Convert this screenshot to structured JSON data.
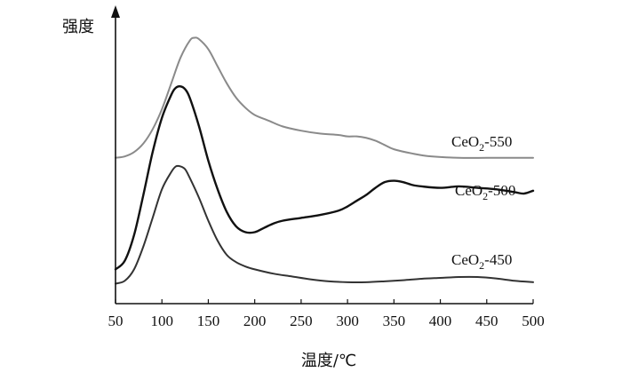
{
  "chart_data": {
    "type": "line",
    "xlabel": "温度/℃",
    "ylabel": "强度",
    "xlim": [
      50,
      500
    ],
    "ylim": [
      0,
      1
    ],
    "x_ticks": [
      50,
      100,
      150,
      200,
      250,
      300,
      350,
      400,
      450,
      500
    ],
    "y_ticks_shown": false,
    "grid": false,
    "legend": "inline-right",
    "series": [
      {
        "name": "CeO2-550",
        "label": {
          "base": "CeO",
          "sub": "2",
          "suffix": "-550"
        },
        "color": "#8a8a8a",
        "x": [
          50,
          60,
          70,
          80,
          90,
          100,
          110,
          120,
          130,
          135,
          140,
          150,
          160,
          170,
          180,
          190,
          200,
          215,
          230,
          250,
          270,
          290,
          300,
          310,
          320,
          330,
          340,
          350,
          370,
          390,
          420,
          450,
          470,
          500
        ],
        "y": [
          0.51,
          0.515,
          0.53,
          0.56,
          0.61,
          0.68,
          0.77,
          0.86,
          0.92,
          0.93,
          0.925,
          0.89,
          0.83,
          0.77,
          0.72,
          0.685,
          0.66,
          0.64,
          0.62,
          0.605,
          0.595,
          0.59,
          0.585,
          0.585,
          0.58,
          0.57,
          0.555,
          0.54,
          0.525,
          0.515,
          0.51,
          0.51,
          0.51,
          0.51
        ]
      },
      {
        "name": "CeO2-500",
        "label": {
          "base": "CeO",
          "sub": "2",
          "suffix": "-500"
        },
        "color": "#111111",
        "x": [
          50,
          60,
          70,
          80,
          90,
          100,
          110,
          115,
          120,
          125,
          130,
          140,
          150,
          160,
          170,
          180,
          190,
          200,
          210,
          220,
          230,
          250,
          270,
          290,
          300,
          310,
          320,
          330,
          340,
          350,
          360,
          370,
          380,
          400,
          420,
          440,
          460,
          480,
          490,
          500
        ],
        "y": [
          0.12,
          0.15,
          0.24,
          0.38,
          0.53,
          0.65,
          0.73,
          0.755,
          0.76,
          0.75,
          0.72,
          0.62,
          0.5,
          0.4,
          0.32,
          0.27,
          0.25,
          0.25,
          0.265,
          0.28,
          0.29,
          0.3,
          0.31,
          0.325,
          0.34,
          0.36,
          0.38,
          0.405,
          0.425,
          0.43,
          0.425,
          0.415,
          0.41,
          0.405,
          0.41,
          0.405,
          0.4,
          0.39,
          0.385,
          0.395
        ]
      },
      {
        "name": "CeO2-450",
        "label": {
          "base": "CeO",
          "sub": "2",
          "suffix": "-450"
        },
        "color": "#333333",
        "x": [
          50,
          60,
          70,
          80,
          90,
          100,
          110,
          115,
          120,
          125,
          130,
          140,
          150,
          160,
          170,
          180,
          190,
          200,
          220,
          240,
          260,
          280,
          300,
          320,
          340,
          360,
          380,
          400,
          420,
          440,
          460,
          480,
          500
        ],
        "y": [
          0.07,
          0.08,
          0.12,
          0.2,
          0.3,
          0.4,
          0.46,
          0.48,
          0.48,
          0.47,
          0.44,
          0.37,
          0.29,
          0.22,
          0.17,
          0.145,
          0.13,
          0.12,
          0.105,
          0.095,
          0.085,
          0.078,
          0.075,
          0.075,
          0.078,
          0.082,
          0.087,
          0.09,
          0.093,
          0.093,
          0.088,
          0.08,
          0.075
        ]
      }
    ]
  }
}
